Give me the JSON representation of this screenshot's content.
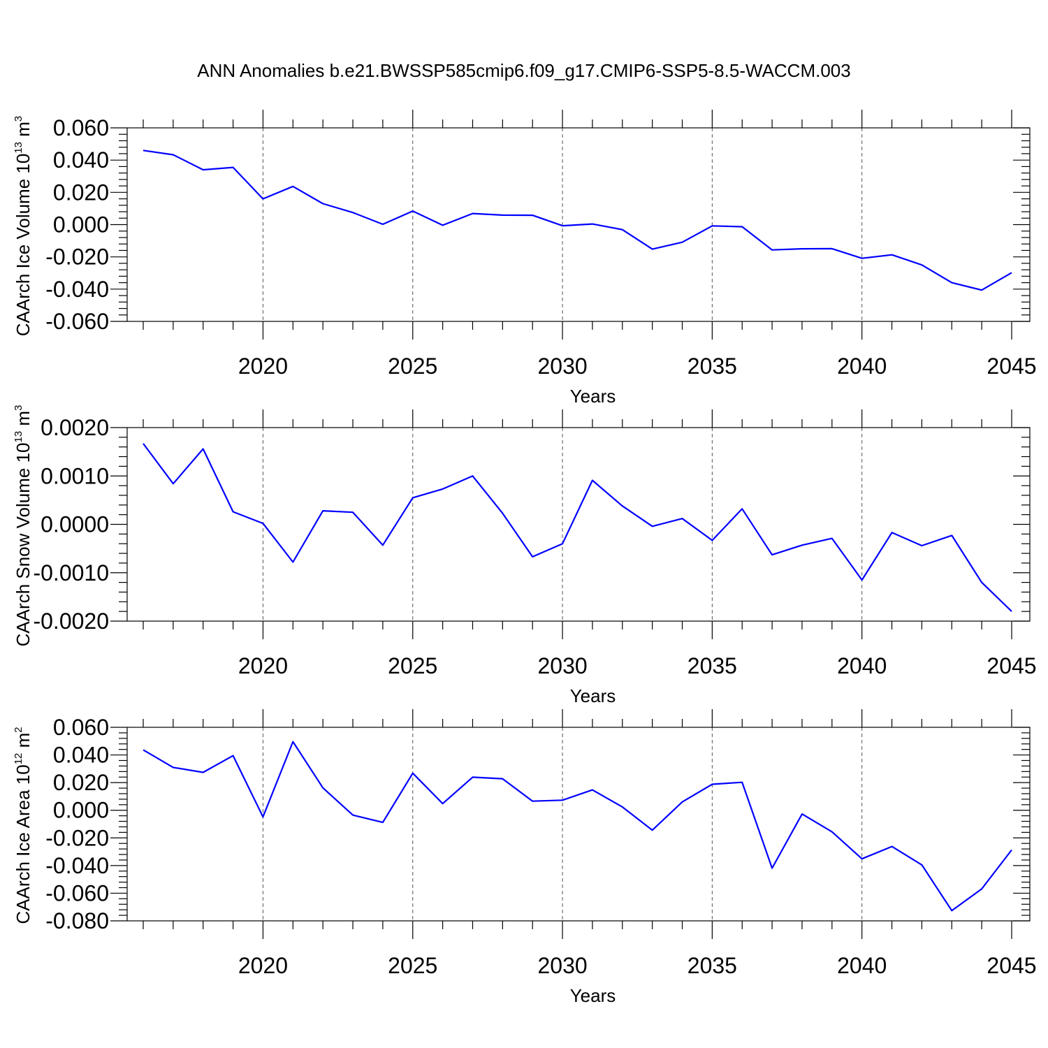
{
  "figure": {
    "title": "ANN Anomalies b.e21.BWSSP585cmip6.f09_g17.CMIP6-SSP5-8.5-WACCM.003"
  },
  "colors": {
    "series": "#0000ff",
    "frame": "#000000",
    "grid": "#555555"
  },
  "chart_data": [
    {
      "type": "line",
      "xlabel": "Years",
      "ylabel_main": "CAArch Ice Volume 10",
      "ylabel_exp": "13",
      "ylabel_unit": " m",
      "ylabel_unit_exp": "3",
      "xlim": [
        2016,
        2045
      ],
      "ylim": [
        -0.06,
        0.06
      ],
      "y_ticks": [
        0.06,
        0.04,
        0.02,
        0.0,
        -0.02,
        -0.04,
        -0.06
      ],
      "y_tick_labels": [
        "0.060",
        "0.040",
        "0.020",
        "0.000",
        "-0.020",
        "-0.040",
        "-0.060"
      ],
      "x_ticks": [
        2020,
        2025,
        2030,
        2035,
        2040,
        2045
      ],
      "x_tick_labels": [
        "2020",
        "2025",
        "2030",
        "2035",
        "2040",
        "2045"
      ],
      "grid": "dashed vertical at major x ticks",
      "x": [
        2016,
        2017,
        2018,
        2019,
        2020,
        2021,
        2022,
        2023,
        2024,
        2025,
        2026,
        2027,
        2028,
        2029,
        2030,
        2031,
        2032,
        2033,
        2034,
        2035,
        2036,
        2037,
        2038,
        2039,
        2040,
        2041,
        2042,
        2043,
        2044,
        2045
      ],
      "series": [
        {
          "values": [
            0.046,
            0.0433,
            0.034,
            0.0355,
            0.016,
            0.0237,
            0.013,
            0.0075,
            0.0002,
            0.0084,
            -0.0004,
            0.0069,
            0.0059,
            0.0058,
            -0.0007,
            0.0004,
            -0.0031,
            -0.0152,
            -0.0109,
            -0.0008,
            -0.0013,
            -0.0157,
            -0.015,
            -0.0149,
            -0.0209,
            -0.0187,
            -0.025,
            -0.036,
            -0.0406,
            -0.0298
          ]
        }
      ]
    },
    {
      "type": "line",
      "xlabel": "Years",
      "ylabel_main": "CAArch Snow Volume 10",
      "ylabel_exp": "13",
      "ylabel_unit": " m",
      "ylabel_unit_exp": "3",
      "xlim": [
        2016,
        2045
      ],
      "ylim": [
        -0.002,
        0.002
      ],
      "y_ticks": [
        0.002,
        0.001,
        0.0,
        -0.001,
        -0.002
      ],
      "y_tick_labels": [
        "0.0020",
        "0.0010",
        "0.0000",
        "-0.0010",
        "-0.0020"
      ],
      "x_ticks": [
        2020,
        2025,
        2030,
        2035,
        2040,
        2045
      ],
      "x_tick_labels": [
        "2020",
        "2025",
        "2030",
        "2035",
        "2040",
        "2045"
      ],
      "grid": "dashed vertical at major x ticks",
      "x": [
        2016,
        2017,
        2018,
        2019,
        2020,
        2021,
        2022,
        2023,
        2024,
        2025,
        2026,
        2027,
        2028,
        2029,
        2030,
        2031,
        2032,
        2033,
        2034,
        2035,
        2036,
        2037,
        2038,
        2039,
        2040,
        2041,
        2042,
        2043,
        2044,
        2045
      ],
      "series": [
        {
          "values": [
            0.00167,
            0.00084,
            0.00156,
            0.00026,
            2e-05,
            -0.00078,
            0.00028,
            0.00025,
            -0.00043,
            0.00055,
            0.00073,
            0.001,
            0.00023,
            -0.00067,
            -0.0004,
            0.00091,
            0.00038,
            -4e-05,
            0.00012,
            -0.00033,
            0.00032,
            -0.00063,
            -0.00043,
            -0.00029,
            -0.00115,
            -0.00017,
            -0.00044,
            -0.00023,
            -0.0012,
            -0.0018
          ]
        }
      ]
    },
    {
      "type": "line",
      "xlabel": "Years",
      "ylabel_main": "CAArch Ice Area 10",
      "ylabel_exp": "12",
      "ylabel_unit": " m",
      "ylabel_unit_exp": "2",
      "xlim": [
        2016,
        2045
      ],
      "ylim": [
        -0.08,
        0.06
      ],
      "y_ticks": [
        0.06,
        0.04,
        0.02,
        0.0,
        -0.02,
        -0.04,
        -0.06,
        -0.08
      ],
      "y_tick_labels": [
        "0.060",
        "0.040",
        "0.020",
        "0.000",
        "-0.020",
        "-0.040",
        "-0.060",
        "-0.080"
      ],
      "x_ticks": [
        2020,
        2025,
        2030,
        2035,
        2040,
        2045
      ],
      "x_tick_labels": [
        "2020",
        "2025",
        "2030",
        "2035",
        "2040",
        "2045"
      ],
      "grid": "dashed vertical at major x ticks",
      "x": [
        2016,
        2017,
        2018,
        2019,
        2020,
        2021,
        2022,
        2023,
        2024,
        2025,
        2026,
        2027,
        2028,
        2029,
        2030,
        2031,
        2032,
        2033,
        2034,
        2035,
        2036,
        2037,
        2038,
        2039,
        2040,
        2041,
        2042,
        2043,
        2044,
        2045
      ],
      "series": [
        {
          "values": [
            0.0437,
            0.031,
            0.0274,
            0.0395,
            -0.0048,
            0.0496,
            0.0162,
            -0.0035,
            -0.0088,
            0.0268,
            0.0048,
            0.0239,
            0.0228,
            0.0066,
            0.0073,
            0.0147,
            0.0024,
            -0.0144,
            0.006,
            0.0188,
            0.0202,
            -0.0419,
            -0.0027,
            -0.0156,
            -0.0351,
            -0.0262,
            -0.0395,
            -0.0726,
            -0.0569,
            -0.0287
          ]
        }
      ]
    }
  ]
}
